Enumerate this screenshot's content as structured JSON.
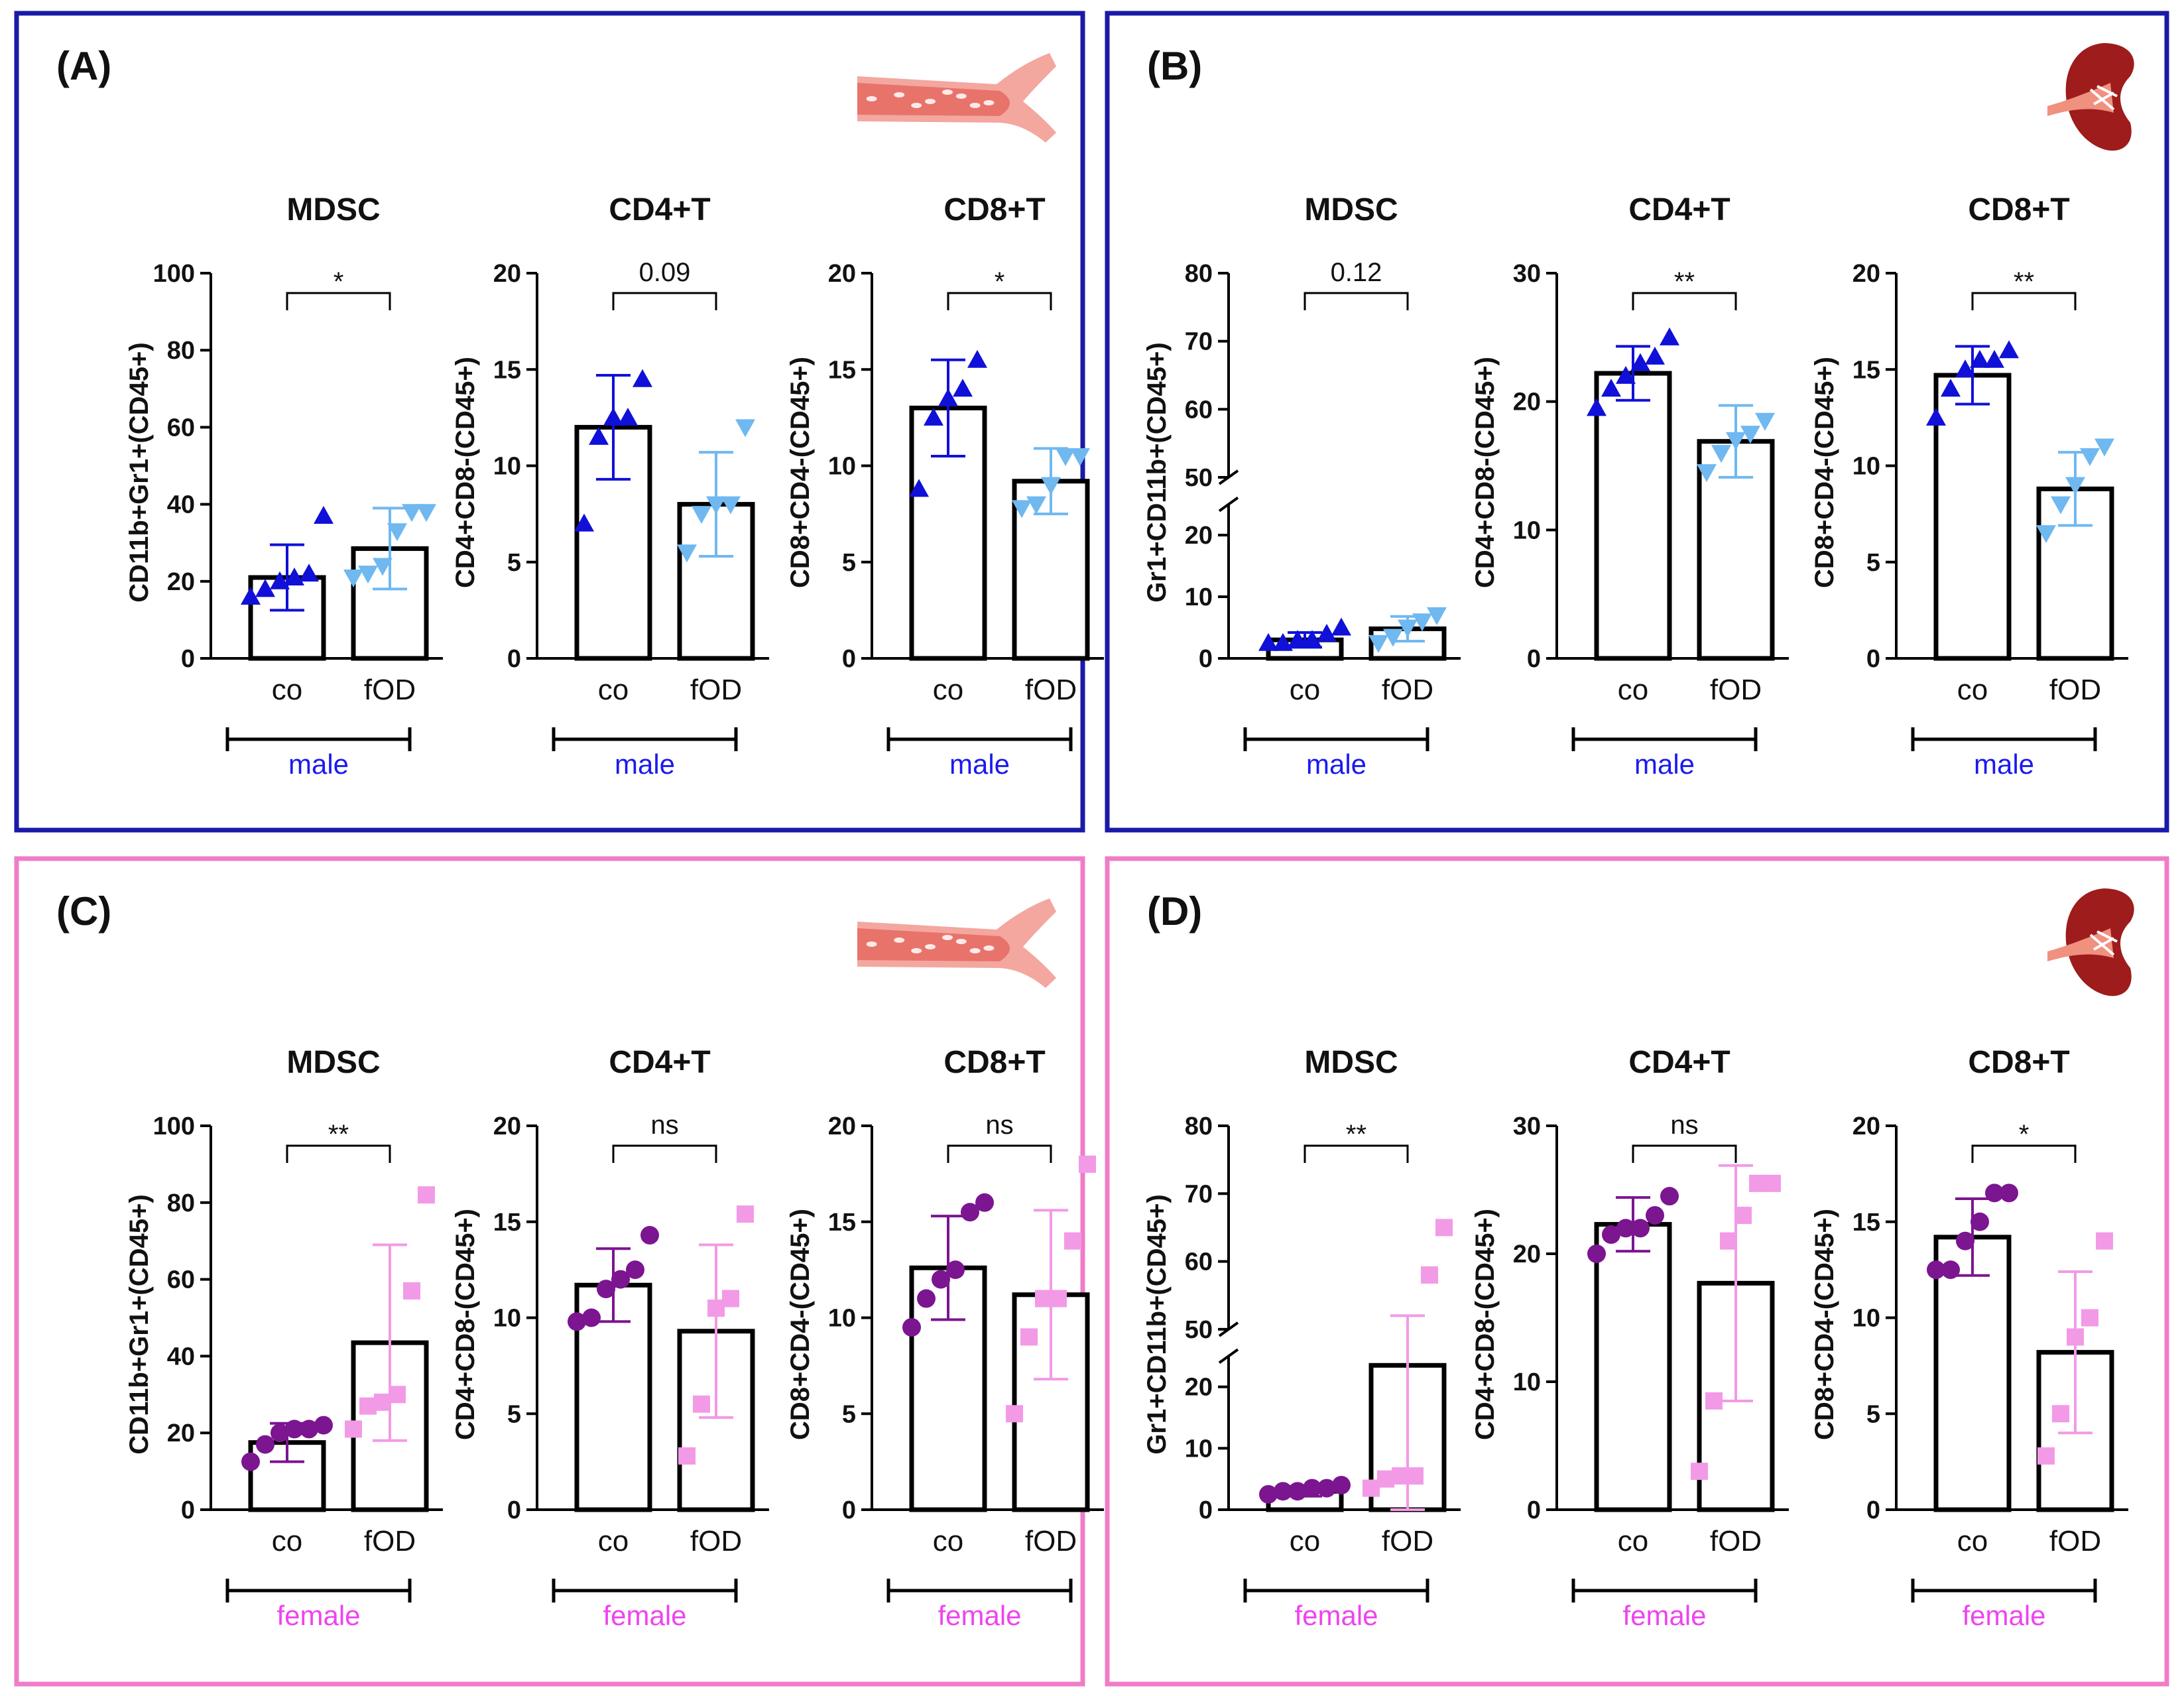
{
  "colors": {
    "male_border": "#1a1aa8",
    "female_border": "#f07cc8",
    "male_co": "#1010d8",
    "male_fod": "#6fb8f0",
    "female_co": "#7b1590",
    "female_fod": "#f29ae6",
    "male_text": "#1a1af0",
    "female_text": "#ee44ee",
    "vessel": "#e8736a",
    "kidney": "#9e1c1c"
  },
  "panels": [
    {
      "label": "(A)",
      "group": "male",
      "organ": "blood-vessel",
      "organ_icon": "blood-vessel-icon"
    },
    {
      "label": "(B)",
      "group": "male",
      "organ": "kidney",
      "organ_icon": "kidney-icon"
    },
    {
      "label": "(C)",
      "group": "female",
      "organ": "blood-vessel",
      "organ_icon": "blood-vessel-icon"
    },
    {
      "label": "(D)",
      "group": "female",
      "organ": "kidney",
      "organ_icon": "kidney-icon"
    }
  ],
  "chart_data": [
    {
      "panel": "(A)",
      "type": "bar",
      "title": "MDSC",
      "ylabel": "CD11b+Gr1+(CD45+)",
      "categories": [
        "co",
        "fOD"
      ],
      "group_label": "male",
      "ylim": [
        0,
        100
      ],
      "yticks": [
        0,
        20,
        40,
        60,
        80,
        100
      ],
      "axis_break": false,
      "values": [
        21,
        28.5
      ],
      "sd": [
        8.5,
        10.5
      ],
      "points": [
        [
          16,
          18,
          20,
          21,
          22,
          37
        ],
        [
          21,
          22,
          24,
          33,
          38,
          38
        ]
      ],
      "markers": [
        "triangle-up",
        "triangle-down"
      ],
      "significance": "*"
    },
    {
      "panel": "(A)",
      "type": "bar",
      "title": "CD4+T",
      "ylabel": "CD4+CD8-(CD45+)",
      "categories": [
        "co",
        "fOD"
      ],
      "group_label": "male",
      "ylim": [
        0,
        20
      ],
      "yticks": [
        0,
        5,
        10,
        15,
        20
      ],
      "axis_break": false,
      "values": [
        12,
        8
      ],
      "sd": [
        2.7,
        2.7
      ],
      "points": [
        [
          7,
          11.5,
          12.5,
          12.5,
          14.5
        ],
        [
          5.5,
          7.5,
          8,
          8,
          12
        ]
      ],
      "markers": [
        "triangle-up",
        "triangle-down"
      ],
      "significance": "0.09"
    },
    {
      "panel": "(A)",
      "type": "bar",
      "title": "CD8+T",
      "ylabel": "CD8+CD4-(CD45+)",
      "categories": [
        "co",
        "fOD"
      ],
      "group_label": "male",
      "ylim": [
        0,
        20
      ],
      "yticks": [
        0,
        5,
        10,
        15,
        20
      ],
      "axis_break": false,
      "values": [
        13,
        9.2
      ],
      "sd": [
        2.5,
        1.7
      ],
      "points": [
        [
          8.8,
          12.5,
          13.5,
          14,
          15.5
        ],
        [
          7.8,
          8,
          9,
          10.5,
          10.5
        ]
      ],
      "markers": [
        "triangle-up",
        "triangle-down"
      ],
      "significance": "*"
    },
    {
      "panel": "(B)",
      "type": "bar",
      "title": "MDSC",
      "ylabel": "Gr1+CD11b+(CD45+)",
      "categories": [
        "co",
        "fOD"
      ],
      "group_label": "male",
      "ylim": [
        0,
        80
      ],
      "yticks": [
        0,
        10,
        20,
        50,
        60,
        70,
        80
      ],
      "axis_break": true,
      "break_lower": [
        0,
        25
      ],
      "break_upper": [
        50,
        80
      ],
      "values": [
        3,
        4.8
      ],
      "sd": [
        1.2,
        2
      ],
      "points": [
        [
          2.5,
          2.5,
          3,
          3,
          4,
          5
        ],
        [
          2.5,
          3.5,
          5,
          6,
          7
        ]
      ],
      "markers": [
        "triangle-up",
        "triangle-down"
      ],
      "significance": "0.12"
    },
    {
      "panel": "(B)",
      "type": "bar",
      "title": "CD4+T",
      "ylabel": "CD4+CD8-(CD45+)",
      "categories": [
        "co",
        "fOD"
      ],
      "group_label": "male",
      "ylim": [
        0,
        30
      ],
      "yticks": [
        0,
        10,
        20,
        30
      ],
      "axis_break": false,
      "values": [
        22.2,
        16.9
      ],
      "sd": [
        2.1,
        2.8
      ],
      "points": [
        [
          19.5,
          21,
          22,
          23,
          23.5,
          25
        ],
        [
          14.5,
          16,
          17,
          17.5,
          18.5
        ]
      ],
      "markers": [
        "triangle-up",
        "triangle-down"
      ],
      "significance": "**"
    },
    {
      "panel": "(B)",
      "type": "bar",
      "title": "CD8+T",
      "ylabel": "CD8+CD4-(CD45+)",
      "categories": [
        "co",
        "fOD"
      ],
      "group_label": "male",
      "ylim": [
        0,
        20
      ],
      "yticks": [
        0,
        5,
        10,
        15,
        20
      ],
      "axis_break": false,
      "values": [
        14.7,
        8.8
      ],
      "sd": [
        1.5,
        1.9
      ],
      "points": [
        [
          12.5,
          14,
          15,
          15.5,
          15.5,
          16
        ],
        [
          6.5,
          8,
          9,
          10.5,
          11
        ]
      ],
      "markers": [
        "triangle-up",
        "triangle-down"
      ],
      "significance": "**"
    },
    {
      "panel": "(C)",
      "type": "bar",
      "title": "MDSC",
      "ylabel": "CD11b+Gr1+(CD45+)",
      "categories": [
        "co",
        "fOD"
      ],
      "group_label": "female",
      "ylim": [
        0,
        100
      ],
      "yticks": [
        0,
        20,
        40,
        60,
        80,
        100
      ],
      "axis_break": false,
      "values": [
        17.5,
        43.5
      ],
      "sd": [
        5,
        25.5
      ],
      "points": [
        [
          12.5,
          17,
          20,
          21,
          21,
          22
        ],
        [
          21,
          27,
          28,
          30,
          57,
          82
        ]
      ],
      "markers": [
        "circle",
        "square"
      ],
      "significance": "**"
    },
    {
      "panel": "(C)",
      "type": "bar",
      "title": "CD4+T",
      "ylabel": "CD4+CD8-(CD45+)",
      "categories": [
        "co",
        "fOD"
      ],
      "group_label": "female",
      "ylim": [
        0,
        20
      ],
      "yticks": [
        0,
        5,
        10,
        15,
        20
      ],
      "axis_break": false,
      "values": [
        11.7,
        9.3
      ],
      "sd": [
        1.9,
        4.5
      ],
      "points": [
        [
          9.8,
          10,
          11.5,
          12,
          12.5,
          14.3
        ],
        [
          2.8,
          5.5,
          10.5,
          11,
          15.4
        ]
      ],
      "markers": [
        "circle",
        "square"
      ],
      "significance": "ns"
    },
    {
      "panel": "(C)",
      "type": "bar",
      "title": "CD8+T",
      "ylabel": "CD8+CD4-(CD45+)",
      "categories": [
        "co",
        "fOD"
      ],
      "group_label": "female",
      "ylim": [
        0,
        20
      ],
      "yticks": [
        0,
        5,
        10,
        15,
        20
      ],
      "axis_break": false,
      "values": [
        12.6,
        11.2
      ],
      "sd": [
        2.7,
        4.4
      ],
      "points": [
        [
          9.5,
          11,
          12,
          12.5,
          15.5,
          16
        ],
        [
          5,
          9,
          11,
          11,
          14,
          18
        ]
      ],
      "markers": [
        "circle",
        "square"
      ],
      "significance": "ns"
    },
    {
      "panel": "(D)",
      "type": "bar",
      "title": "MDSC",
      "ylabel": "Gr1+CD11b+(CD45+)",
      "categories": [
        "co",
        "fOD"
      ],
      "group_label": "female",
      "ylim": [
        0,
        80
      ],
      "yticks": [
        0,
        10,
        20,
        50,
        60,
        70,
        80
      ],
      "axis_break": true,
      "break_lower": [
        0,
        25
      ],
      "break_upper": [
        50,
        80
      ],
      "values": [
        3,
        23.5
      ],
      "sd": [
        0.8,
        28.5
      ],
      "points": [
        [
          2.5,
          3,
          3,
          3.5,
          3.5,
          4
        ],
        [
          3.5,
          5,
          5.5,
          5.5,
          58,
          65
        ]
      ],
      "markers": [
        "circle",
        "square"
      ],
      "significance": "**"
    },
    {
      "panel": "(D)",
      "type": "bar",
      "title": "CD4+T",
      "ylabel": "CD4+CD8-(CD45+)",
      "categories": [
        "co",
        "fOD"
      ],
      "group_label": "female",
      "ylim": [
        0,
        30
      ],
      "yticks": [
        0,
        10,
        20,
        30
      ],
      "axis_break": false,
      "values": [
        22.3,
        17.7
      ],
      "sd": [
        2.1,
        9.2
      ],
      "points": [
        [
          20,
          21.5,
          22,
          22,
          23,
          24.5
        ],
        [
          3,
          8.5,
          21,
          23,
          25.5,
          25.5
        ]
      ],
      "markers": [
        "circle",
        "square"
      ],
      "significance": "ns"
    },
    {
      "panel": "(D)",
      "type": "bar",
      "title": "CD8+T",
      "ylabel": "CD8+CD4-(CD45+)",
      "categories": [
        "co",
        "fOD"
      ],
      "group_label": "female",
      "ylim": [
        0,
        20
      ],
      "yticks": [
        0,
        5,
        10,
        15,
        20
      ],
      "axis_break": false,
      "values": [
        14.2,
        8.2
      ],
      "sd": [
        2,
        4.2
      ],
      "points": [
        [
          12.5,
          12.5,
          14,
          15,
          16.5,
          16.5
        ],
        [
          2.8,
          5,
          9,
          10,
          14
        ]
      ],
      "markers": [
        "circle",
        "square"
      ],
      "significance": "*"
    }
  ]
}
